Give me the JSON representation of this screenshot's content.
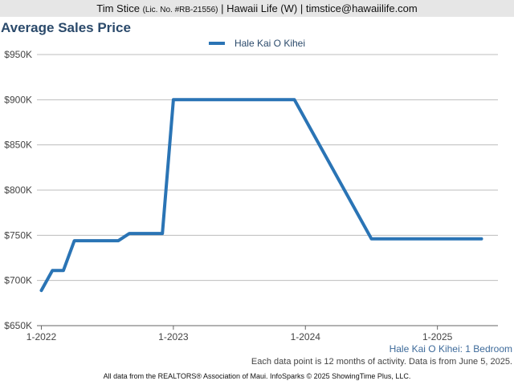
{
  "header": {
    "agent_name": "Tim Stice",
    "license": "(Lic. No. #RB-21556)",
    "rest": "| Hawaii Life (W) | timstice@hawaiilife.com"
  },
  "subtitle": "Hale Kai O Kihei: 1 Bedroom",
  "note": "Each data point is 12 months of activity. Data is from June 5, 2025.",
  "footer": "All data from the REALTORS® Association of Maui. InfoSparks © 2025 ShowingTime Plus, LLC.",
  "chart_data": {
    "type": "line",
    "title": "Average Sales Price",
    "xlabel": "",
    "ylabel": "",
    "x_ticks": [
      "1-2022",
      "1-2023",
      "1-2024",
      "1-2025"
    ],
    "y_ticks": [
      "$650K",
      "$700K",
      "$750K",
      "$800K",
      "$850K",
      "$900K",
      "$950K"
    ],
    "ylim": [
      650000,
      950000
    ],
    "xlim": [
      "2022-01",
      "2025-06"
    ],
    "legend_position": "top-center",
    "grid": true,
    "series": [
      {
        "name": "Hale Kai O Kihei",
        "color": "#2a74b5",
        "points": [
          {
            "x": "2022-01",
            "y": 689000
          },
          {
            "x": "2022-02",
            "y": 711000
          },
          {
            "x": "2022-03",
            "y": 711000
          },
          {
            "x": "2022-04",
            "y": 744000
          },
          {
            "x": "2022-05",
            "y": 744000
          },
          {
            "x": "2022-06",
            "y": 744000
          },
          {
            "x": "2022-07",
            "y": 744000
          },
          {
            "x": "2022-08",
            "y": 744000
          },
          {
            "x": "2022-09",
            "y": 752000
          },
          {
            "x": "2022-10",
            "y": 752000
          },
          {
            "x": "2022-11",
            "y": 752000
          },
          {
            "x": "2022-12",
            "y": 752000
          },
          {
            "x": "2023-01",
            "y": 900000
          },
          {
            "x": "2023-02",
            "y": 900000
          },
          {
            "x": "2023-03",
            "y": 900000
          },
          {
            "x": "2023-04",
            "y": 900000
          },
          {
            "x": "2023-05",
            "y": 900000
          },
          {
            "x": "2023-06",
            "y": 900000
          },
          {
            "x": "2023-07",
            "y": 900000
          },
          {
            "x": "2023-08",
            "y": 900000
          },
          {
            "x": "2023-09",
            "y": 900000
          },
          {
            "x": "2023-10",
            "y": 900000
          },
          {
            "x": "2023-11",
            "y": 900000
          },
          {
            "x": "2023-12",
            "y": 900000
          },
          {
            "x": "2024-07",
            "y": 746000
          },
          {
            "x": "2024-08",
            "y": 746000
          },
          {
            "x": "2024-09",
            "y": 746000
          },
          {
            "x": "2024-10",
            "y": 746000
          },
          {
            "x": "2024-11",
            "y": 746000
          },
          {
            "x": "2024-12",
            "y": 746000
          },
          {
            "x": "2025-01",
            "y": 746000
          },
          {
            "x": "2025-02",
            "y": 746000
          },
          {
            "x": "2025-03",
            "y": 746000
          },
          {
            "x": "2025-04",
            "y": 746000
          },
          {
            "x": "2025-05",
            "y": 746000
          }
        ]
      }
    ]
  }
}
